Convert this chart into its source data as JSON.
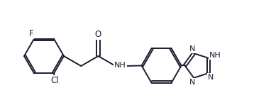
{
  "bg_color": "#ffffff",
  "bond_color": "#1c1c2e",
  "atom_colors": {
    "F": "#1c1c2e",
    "O": "#1c1c2e",
    "N": "#1c1c2e",
    "Cl": "#1c1c2e",
    "NH": "#1c1c2e"
  },
  "figsize": [
    3.82,
    1.55
  ],
  "dpi": 100,
  "lw": 1.4,
  "bl": 0.28
}
